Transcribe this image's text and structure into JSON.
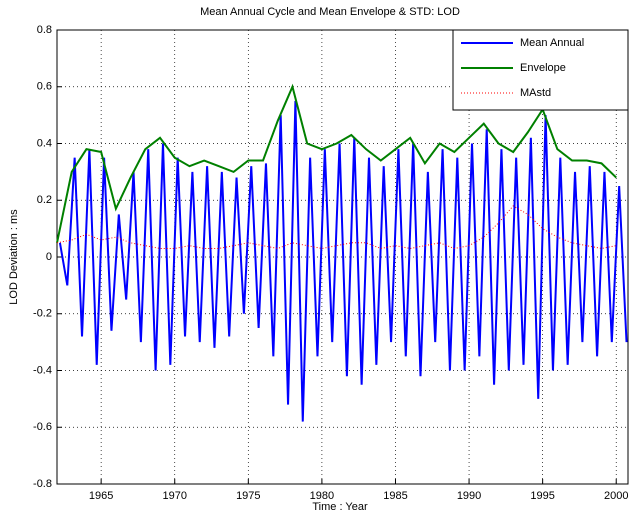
{
  "chart_data": {
    "type": "line",
    "title": "Mean Annual Cycle and Mean Envelope & STD: LOD",
    "x_label": "Time : Year",
    "y_label": "LOD Deviation : ms",
    "xlim": [
      1962,
      2000.8
    ],
    "xticks": [
      1965,
      1970,
      1975,
      1980,
      1985,
      1990,
      1995,
      2000
    ],
    "ylim": [
      -0.8,
      0.8
    ],
    "yticks": [
      -0.8,
      -0.6,
      -0.4,
      -0.2,
      0,
      0.2,
      0.4,
      0.6,
      0.8
    ],
    "grid": true,
    "legend": "top-right",
    "series": [
      {
        "name": "Mean Annual",
        "color": "#0000ff",
        "style": "solid",
        "x": [
          1962.2,
          1962.7,
          1963.2,
          1963.7,
          1964.2,
          1964.7,
          1965.2,
          1965.7,
          1966.2,
          1966.7,
          1967.2,
          1967.7,
          1968.2,
          1968.7,
          1969.2,
          1969.7,
          1970.2,
          1970.7,
          1971.2,
          1971.7,
          1972.2,
          1972.7,
          1973.2,
          1973.7,
          1974.2,
          1974.7,
          1975.2,
          1975.7,
          1976.2,
          1976.7,
          1977.2,
          1977.7,
          1978.2,
          1978.7,
          1979.2,
          1979.7,
          1980.2,
          1980.7,
          1981.2,
          1981.7,
          1982.2,
          1982.7,
          1983.2,
          1983.7,
          1984.2,
          1984.7,
          1985.2,
          1985.7,
          1986.2,
          1986.7,
          1987.2,
          1987.7,
          1988.2,
          1988.7,
          1989.2,
          1989.7,
          1990.2,
          1990.7,
          1991.2,
          1991.7,
          1992.2,
          1992.7,
          1993.2,
          1993.7,
          1994.2,
          1994.7,
          1995.2,
          1995.7,
          1996.2,
          1996.7,
          1997.2,
          1997.7,
          1998.2,
          1998.7,
          1999.2,
          1999.7,
          2000.2,
          2000.7
        ],
        "values": [
          0.05,
          -0.1,
          0.35,
          -0.28,
          0.38,
          -0.38,
          0.35,
          -0.26,
          0.15,
          -0.15,
          0.3,
          -0.3,
          0.38,
          -0.4,
          0.4,
          -0.38,
          0.35,
          -0.28,
          0.3,
          -0.3,
          0.32,
          -0.32,
          0.3,
          -0.28,
          0.28,
          -0.2,
          0.32,
          -0.25,
          0.33,
          -0.35,
          0.5,
          -0.52,
          0.55,
          -0.58,
          0.35,
          -0.35,
          0.38,
          -0.3,
          0.4,
          -0.42,
          0.42,
          -0.45,
          0.35,
          -0.38,
          0.32,
          -0.3,
          0.38,
          -0.35,
          0.4,
          -0.42,
          0.3,
          -0.3,
          0.38,
          -0.4,
          0.35,
          -0.4,
          0.4,
          -0.35,
          0.45,
          -0.45,
          0.38,
          -0.4,
          0.35,
          -0.38,
          0.42,
          -0.5,
          0.5,
          -0.4,
          0.35,
          -0.38,
          0.3,
          -0.3,
          0.32,
          -0.35,
          0.3,
          -0.3,
          0.25,
          -0.3
        ]
      },
      {
        "name": "Envelope",
        "color": "#008000",
        "style": "solid",
        "x": [
          1962,
          1963,
          1964,
          1965,
          1966,
          1967,
          1968,
          1969,
          1970,
          1971,
          1972,
          1973,
          1974,
          1975,
          1976,
          1977,
          1978,
          1979,
          1980,
          1981,
          1982,
          1983,
          1984,
          1985,
          1986,
          1987,
          1988,
          1989,
          1990,
          1991,
          1992,
          1993,
          1994,
          1995,
          1996,
          1997,
          1998,
          1999,
          2000
        ],
        "values": [
          0.05,
          0.3,
          0.38,
          0.37,
          0.17,
          0.28,
          0.38,
          0.42,
          0.35,
          0.32,
          0.34,
          0.32,
          0.3,
          0.34,
          0.34,
          0.48,
          0.6,
          0.4,
          0.38,
          0.4,
          0.43,
          0.38,
          0.34,
          0.38,
          0.42,
          0.33,
          0.4,
          0.37,
          0.42,
          0.47,
          0.4,
          0.37,
          0.44,
          0.52,
          0.38,
          0.34,
          0.34,
          0.33,
          0.28
        ]
      },
      {
        "name": "MAstd",
        "color": "#ff0000",
        "style": "dotted",
        "x": [
          1962,
          1963,
          1964,
          1965,
          1966,
          1967,
          1968,
          1969,
          1970,
          1971,
          1972,
          1973,
          1974,
          1975,
          1976,
          1977,
          1978,
          1979,
          1980,
          1981,
          1982,
          1983,
          1984,
          1985,
          1986,
          1987,
          1988,
          1989,
          1990,
          1991,
          1992,
          1993,
          1994,
          1995,
          1996,
          1997,
          1998,
          1999,
          2000
        ],
        "values": [
          0.05,
          0.06,
          0.08,
          0.06,
          0.07,
          0.05,
          0.04,
          0.03,
          0.03,
          0.04,
          0.03,
          0.03,
          0.04,
          0.05,
          0.04,
          0.03,
          0.05,
          0.04,
          0.03,
          0.04,
          0.05,
          0.05,
          0.03,
          0.04,
          0.03,
          0.04,
          0.05,
          0.03,
          0.04,
          0.07,
          0.12,
          0.18,
          0.15,
          0.1,
          0.07,
          0.05,
          0.04,
          0.03,
          0.04
        ]
      }
    ]
  }
}
